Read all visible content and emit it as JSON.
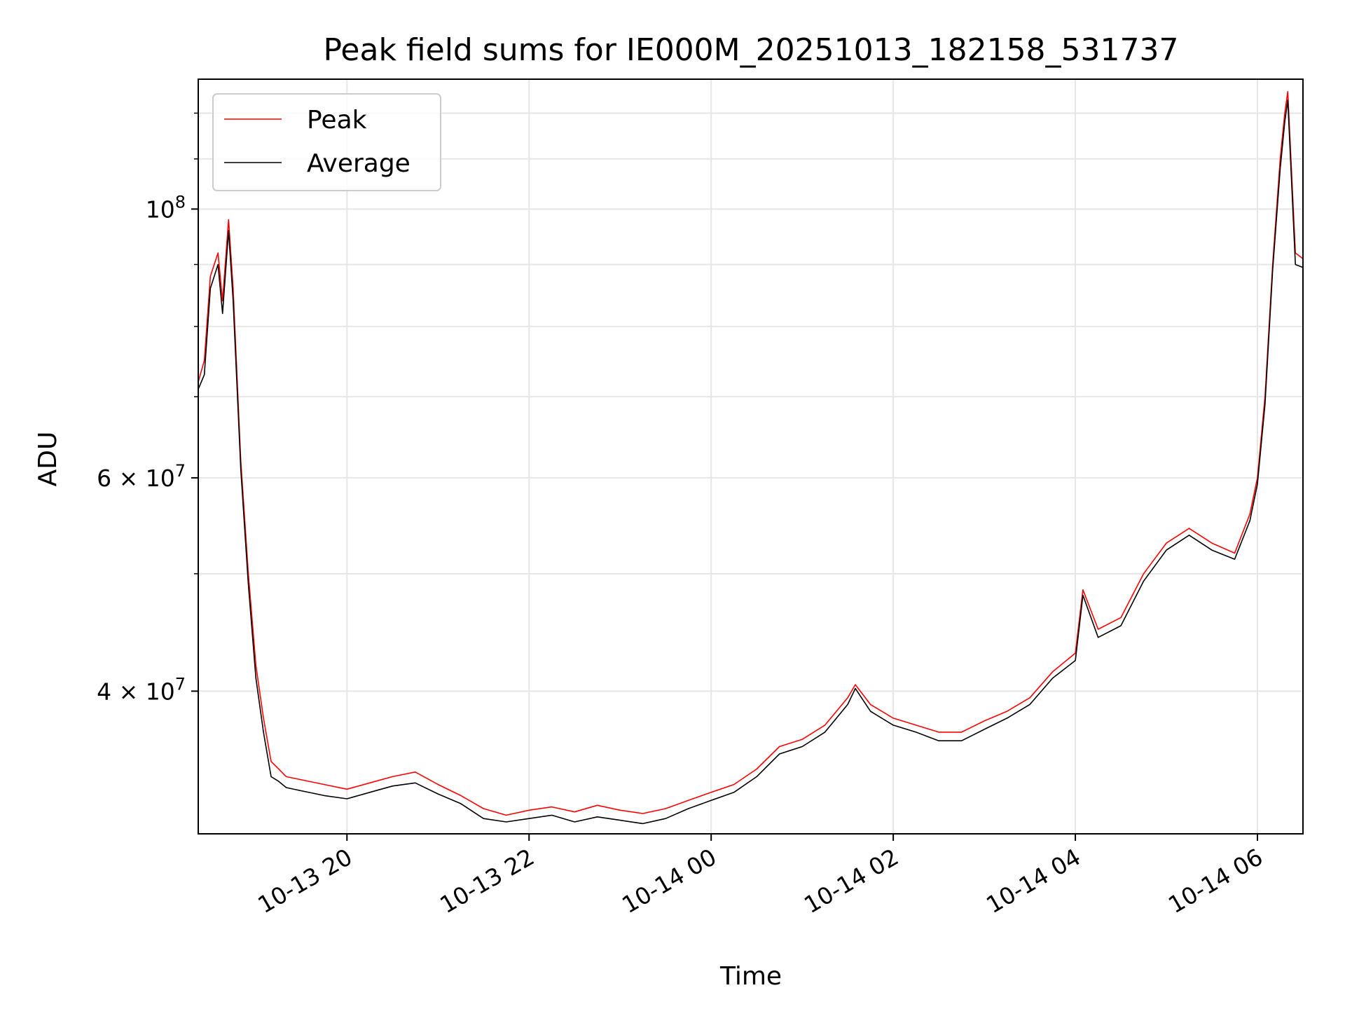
{
  "chart_data": {
    "type": "line",
    "title": "Peak field sums for IE000M_20251013_182158_531737",
    "xlabel": "Time",
    "ylabel": "ADU",
    "y_scale": "log",
    "ylim": [
      30500000,
      128000000
    ],
    "xlim": [
      "2025-10-13 18:22",
      "2025-10-14 06:30"
    ],
    "grid": true,
    "legend_position": "upper-left",
    "x_ticks": [
      "10-13 20",
      "10-13 22",
      "10-14 00",
      "10-14 02",
      "10-14 04",
      "10-14 06"
    ],
    "y_ticks": [
      {
        "base": "10",
        "exp": "8",
        "prefix": ""
      },
      {
        "base": "10",
        "exp": "7",
        "prefix": "6 × "
      },
      {
        "base": "10",
        "exp": "7",
        "prefix": "4 × "
      }
    ],
    "series": [
      {
        "name": "Peak",
        "color": "#ff0000",
        "x": [
          "2025-10-13 18:22",
          "2025-10-13 18:26",
          "2025-10-13 18:30",
          "2025-10-13 18:35",
          "2025-10-13 18:38",
          "2025-10-13 18:42",
          "2025-10-13 18:45",
          "2025-10-13 18:50",
          "2025-10-13 18:55",
          "2025-10-13 19:00",
          "2025-10-13 19:05",
          "2025-10-13 19:10",
          "2025-10-13 19:15",
          "2025-10-13 19:20",
          "2025-10-13 19:30",
          "2025-10-13 19:45",
          "2025-10-13 20:00",
          "2025-10-13 20:15",
          "2025-10-13 20:30",
          "2025-10-13 20:45",
          "2025-10-13 21:00",
          "2025-10-13 21:15",
          "2025-10-13 21:30",
          "2025-10-13 21:45",
          "2025-10-13 22:00",
          "2025-10-13 22:15",
          "2025-10-13 22:30",
          "2025-10-13 22:45",
          "2025-10-13 23:00",
          "2025-10-13 23:15",
          "2025-10-13 23:30",
          "2025-10-13 23:45",
          "2025-10-14 00:00",
          "2025-10-14 00:15",
          "2025-10-14 00:30",
          "2025-10-14 00:45",
          "2025-10-14 01:00",
          "2025-10-14 01:15",
          "2025-10-14 01:30",
          "2025-10-14 01:35",
          "2025-10-14 01:45",
          "2025-10-14 02:00",
          "2025-10-14 02:15",
          "2025-10-14 02:30",
          "2025-10-14 02:45",
          "2025-10-14 03:00",
          "2025-10-14 03:15",
          "2025-10-14 03:30",
          "2025-10-14 03:45",
          "2025-10-14 04:00",
          "2025-10-14 04:05",
          "2025-10-14 04:15",
          "2025-10-14 04:30",
          "2025-10-14 04:45",
          "2025-10-14 05:00",
          "2025-10-14 05:15",
          "2025-10-14 05:30",
          "2025-10-14 05:45",
          "2025-10-14 05:55",
          "2025-10-14 06:00",
          "2025-10-14 06:05",
          "2025-10-14 06:10",
          "2025-10-14 06:15",
          "2025-10-14 06:18",
          "2025-10-14 06:20",
          "2025-10-14 06:25",
          "2025-10-14 06:30"
        ],
        "y": [
          72000000,
          75000000,
          88000000,
          92000000,
          84000000,
          98000000,
          86000000,
          62000000,
          50000000,
          42000000,
          38000000,
          35000000,
          34500000,
          34000000,
          33800000,
          33500000,
          33200000,
          33600000,
          34000000,
          34300000,
          33500000,
          32800000,
          32000000,
          31600000,
          31900000,
          32100000,
          31800000,
          32200000,
          31900000,
          31700000,
          32000000,
          32500000,
          33000000,
          33500000,
          34500000,
          36000000,
          36500000,
          37500000,
          39500000,
          40500000,
          39000000,
          38000000,
          37500000,
          37000000,
          37000000,
          37800000,
          38500000,
          39500000,
          41500000,
          43000000,
          48500000,
          45000000,
          46000000,
          50000000,
          53000000,
          54500000,
          53000000,
          52000000,
          56000000,
          60000000,
          70000000,
          90000000,
          110000000,
          120000000,
          125000000,
          92000000,
          91000000
        ]
      },
      {
        "name": "Average",
        "color": "#000000",
        "x": [
          "2025-10-13 18:22",
          "2025-10-13 18:26",
          "2025-10-13 18:30",
          "2025-10-13 18:35",
          "2025-10-13 18:38",
          "2025-10-13 18:42",
          "2025-10-13 18:45",
          "2025-10-13 18:50",
          "2025-10-13 18:55",
          "2025-10-13 19:00",
          "2025-10-13 19:05",
          "2025-10-13 19:10",
          "2025-10-13 19:15",
          "2025-10-13 19:20",
          "2025-10-13 19:30",
          "2025-10-13 19:45",
          "2025-10-13 20:00",
          "2025-10-13 20:15",
          "2025-10-13 20:30",
          "2025-10-13 20:45",
          "2025-10-13 21:00",
          "2025-10-13 21:15",
          "2025-10-13 21:30",
          "2025-10-13 21:45",
          "2025-10-13 22:00",
          "2025-10-13 22:15",
          "2025-10-13 22:30",
          "2025-10-13 22:45",
          "2025-10-13 23:00",
          "2025-10-13 23:15",
          "2025-10-13 23:30",
          "2025-10-13 23:45",
          "2025-10-14 00:00",
          "2025-10-14 00:15",
          "2025-10-14 00:30",
          "2025-10-14 00:45",
          "2025-10-14 01:00",
          "2025-10-14 01:15",
          "2025-10-14 01:30",
          "2025-10-14 01:35",
          "2025-10-14 01:45",
          "2025-10-14 02:00",
          "2025-10-14 02:15",
          "2025-10-14 02:30",
          "2025-10-14 02:45",
          "2025-10-14 03:00",
          "2025-10-14 03:15",
          "2025-10-14 03:30",
          "2025-10-14 03:45",
          "2025-10-14 04:00",
          "2025-10-14 04:05",
          "2025-10-14 04:15",
          "2025-10-14 04:30",
          "2025-10-14 04:45",
          "2025-10-14 05:00",
          "2025-10-14 05:15",
          "2025-10-14 05:30",
          "2025-10-14 05:45",
          "2025-10-14 05:55",
          "2025-10-14 06:00",
          "2025-10-14 06:05",
          "2025-10-14 06:10",
          "2025-10-14 06:15",
          "2025-10-14 06:18",
          "2025-10-14 06:20",
          "2025-10-14 06:25",
          "2025-10-14 06:30"
        ],
        "y": [
          71000000,
          73000000,
          86000000,
          90000000,
          82000000,
          96000000,
          84000000,
          61000000,
          49000000,
          41000000,
          37000000,
          34000000,
          33700000,
          33300000,
          33100000,
          32800000,
          32600000,
          33000000,
          33400000,
          33600000,
          32900000,
          32300000,
          31400000,
          31200000,
          31400000,
          31600000,
          31200000,
          31500000,
          31300000,
          31100000,
          31400000,
          32000000,
          32500000,
          33000000,
          34000000,
          35500000,
          36000000,
          37000000,
          39000000,
          40200000,
          38500000,
          37500000,
          37000000,
          36400000,
          36400000,
          37200000,
          38000000,
          39000000,
          41000000,
          42400000,
          48000000,
          44300000,
          45300000,
          49300000,
          52300000,
          53800000,
          52300000,
          51400000,
          55300000,
          59300000,
          69000000,
          89000000,
          108000000,
          118000000,
          123000000,
          90000000,
          89500000
        ]
      }
    ]
  }
}
